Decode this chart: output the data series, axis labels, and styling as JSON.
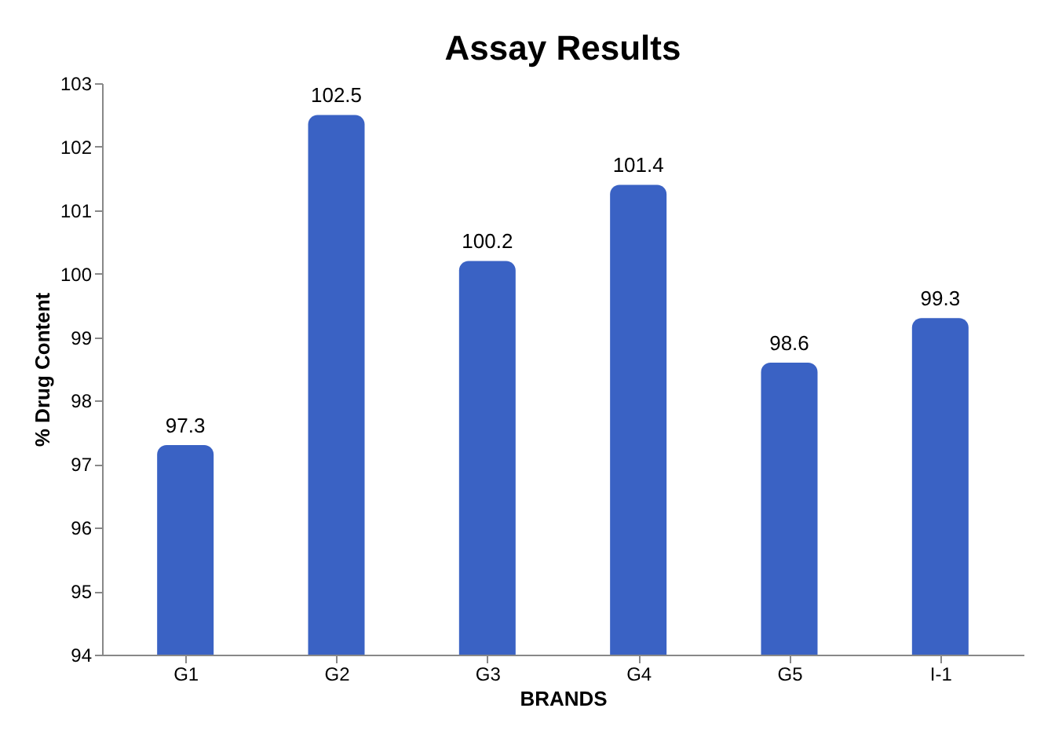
{
  "chart_data": {
    "type": "bar",
    "title": "Assay Results",
    "xlabel": "BRANDS",
    "ylabel": "% Drug Content",
    "categories": [
      "G1",
      "G2",
      "G3",
      "G4",
      "G5",
      "I-1"
    ],
    "values": [
      97.3,
      102.5,
      100.2,
      101.4,
      98.6,
      99.3
    ],
    "color": "#3a62c4",
    "ylim": [
      94,
      103
    ],
    "yticks": [
      94,
      95,
      96,
      97,
      98,
      99,
      100,
      101,
      102,
      103
    ],
    "grid": false,
    "data_labels": true
  }
}
